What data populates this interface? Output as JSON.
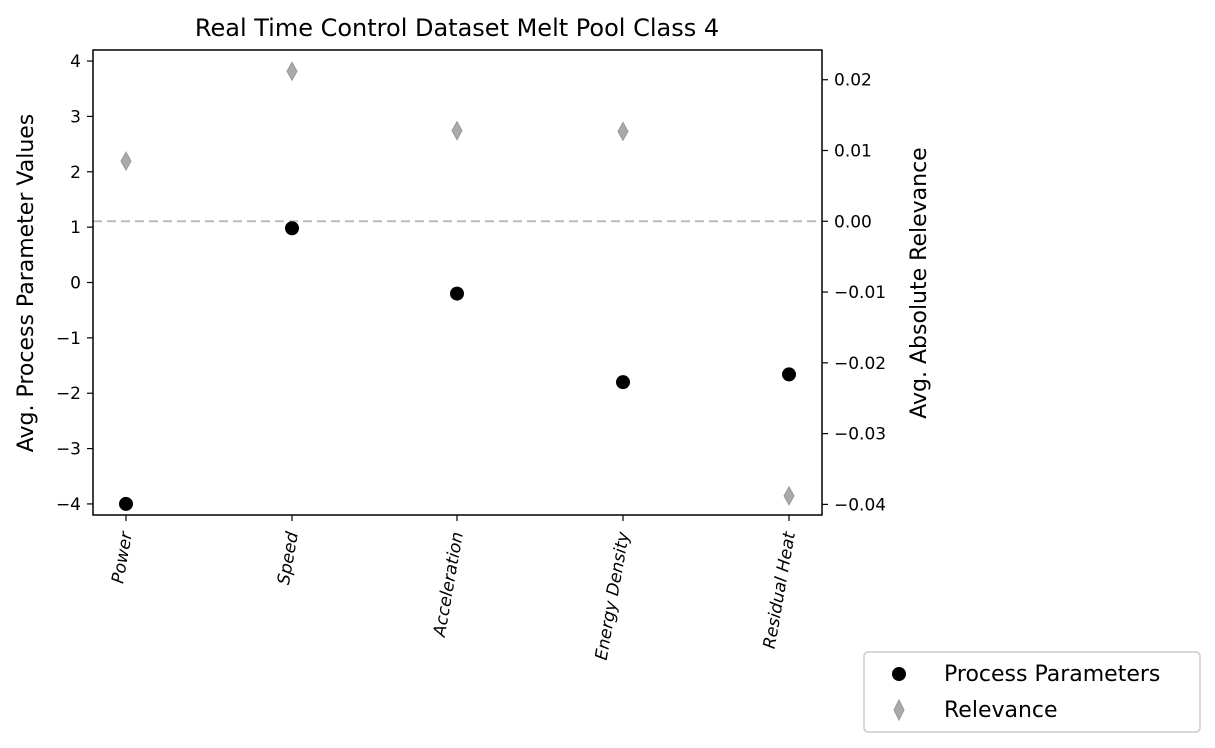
{
  "chart_data": {
    "type": "scatter",
    "title": "Real Time Control Dataset Melt Pool Class 4",
    "categories": [
      "Power",
      "Speed",
      "Acceleration",
      "Energy Density",
      "Residual Heat"
    ],
    "ylabel_left": "Avg. Process Parameter Values",
    "ylabel_right": "Avg. Absolute Relevance",
    "ylim_left": [
      -4.2,
      4.2
    ],
    "ylim_right": [
      -0.0415,
      0.0242
    ],
    "yticks_left": [
      4,
      3,
      2,
      1,
      0,
      -1,
      -2,
      -3,
      -4
    ],
    "ytick_labels_left": [
      "4",
      "3",
      "2",
      "1",
      "0",
      "−1",
      "−2",
      "−3",
      "−4"
    ],
    "yticks_right": [
      0.02,
      0.01,
      0.0,
      -0.01,
      -0.02,
      -0.03,
      -0.04
    ],
    "ytick_labels_right": [
      "0.02",
      "0.01",
      "0.00",
      "−0.01",
      "−0.02",
      "−0.03",
      "−0.04"
    ],
    "reference_line": {
      "axis": "right",
      "value": 0.0,
      "style": "dashed",
      "color": "#bbbbbb"
    },
    "series": [
      {
        "name": "Process Parameters",
        "axis": "left",
        "marker": "circle",
        "color": "#000000",
        "values": [
          -4.0,
          0.98,
          -0.2,
          -1.8,
          -1.66
        ]
      },
      {
        "name": "Relevance",
        "axis": "right",
        "marker": "diamond",
        "color": "#aaaaaa",
        "values": [
          0.0085,
          0.0212,
          0.0128,
          0.0127,
          -0.0388
        ]
      }
    ],
    "legend": {
      "placement": "bottom-right, outside plot"
    },
    "grid": false
  }
}
